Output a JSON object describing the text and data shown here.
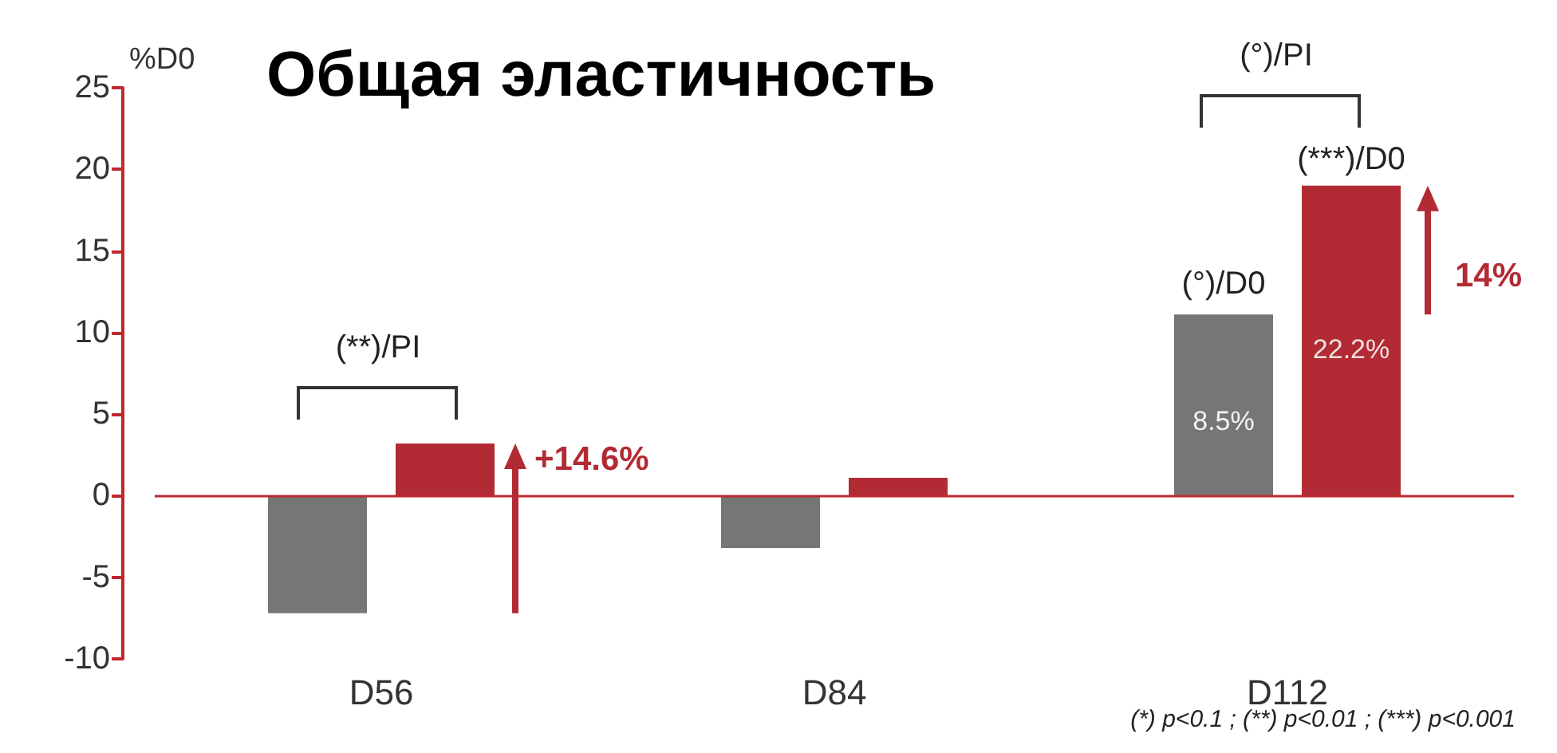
{
  "chart_data": {
    "type": "bar",
    "title": "Общая эластичность",
    "ylabel": "%D0",
    "categories": [
      "D56",
      "D84",
      "D112"
    ],
    "series": [
      {
        "color": "#767676",
        "values": [
          -7.2,
          -3.2,
          11.1
        ]
      },
      {
        "color": "#b22a33",
        "values": [
          3.2,
          1.1,
          19.0
        ]
      }
    ],
    "ylim": [
      -10,
      25
    ],
    "yticks": [
      -10,
      -5,
      0,
      5,
      10,
      15,
      20,
      25
    ],
    "grid": false,
    "ref_lines": [
      {
        "axis": "y",
        "value": 0,
        "color": "#c0282f"
      }
    ],
    "annotations": [
      "(**)/PI",
      "+14.6%",
      "(°)/D0",
      "(***)/D0",
      "(°)/PI",
      "14%",
      "8.5%",
      "22.2%",
      "(*) p<0.1 ; (**) p<0.01 ; (***) p<0.001"
    ]
  }
}
